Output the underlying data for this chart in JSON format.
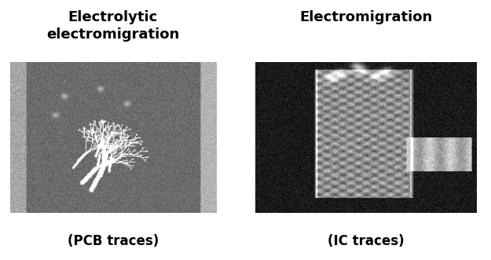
{
  "title_left": "Electrolytic\nelectromigration",
  "title_right": "Electromigration",
  "caption_left": "(PCB traces)",
  "caption_right": "(IC traces)",
  "bg_color": "#ffffff",
  "title_fontsize": 13,
  "caption_fontsize": 12,
  "fig_width": 6.25,
  "fig_height": 3.31,
  "dpi": 100
}
